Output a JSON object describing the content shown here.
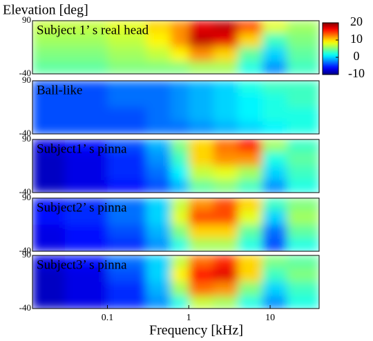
{
  "chart_data": {
    "type": "heatmap",
    "title": "Elevation [deg]",
    "x_label": "Frequency [kHz]",
    "xscale": "log",
    "xlim": [
      0.012,
      40
    ],
    "xticks": [
      0.1,
      1,
      10
    ],
    "ylim": [
      -40,
      90
    ],
    "yticks": [
      90,
      -40
    ],
    "xbins": [
      0.012,
      0.03,
      0.1,
      0.3,
      0.6,
      1,
      2,
      4,
      8,
      16,
      40
    ],
    "ybins": [
      90,
      60,
      25,
      -10,
      -40
    ],
    "colormap": "jet",
    "clim": [
      -10,
      20
    ],
    "cticks": [
      20,
      10,
      0,
      -10
    ],
    "panels": [
      {
        "title": "Subject 1’ s real head",
        "label_color": "#000000",
        "z": [
          [
            7,
            7,
            8,
            10,
            12,
            17,
            18,
            14,
            8,
            6
          ],
          [
            6,
            6,
            7,
            9,
            12,
            18,
            17,
            10,
            3,
            5
          ],
          [
            5,
            5,
            6,
            7,
            9,
            12,
            10,
            4,
            0,
            4
          ],
          [
            4,
            4,
            5,
            5,
            5,
            6,
            6,
            2,
            -2,
            3
          ]
        ]
      },
      {
        "title": "Ball-like",
        "label_color": "#000000",
        "z": [
          [
            -4,
            -4,
            -3,
            -3,
            -2,
            -1,
            0,
            2,
            3,
            3
          ],
          [
            -4,
            -4,
            -3,
            -3,
            -2,
            -1,
            0,
            1,
            2,
            3
          ],
          [
            -4,
            -4,
            -4,
            -3,
            -2,
            -1,
            0,
            1,
            2,
            2
          ],
          [
            -4,
            -4,
            -4,
            -3,
            -3,
            -2,
            -1,
            0,
            1,
            2
          ]
        ]
      },
      {
        "title": "Subject1’ s pinna",
        "label_color": "#ffffff",
        "z": [
          [
            -7,
            -6,
            -4,
            -1,
            5,
            10,
            13,
            16,
            6,
            3
          ],
          [
            -8,
            -7,
            -5,
            -2,
            3,
            10,
            12,
            12,
            2,
            4
          ],
          [
            -8,
            -7,
            -5,
            -3,
            1,
            7,
            8,
            6,
            0,
            3
          ],
          [
            -8,
            -7,
            -6,
            -4,
            -1,
            4,
            5,
            3,
            -2,
            2
          ]
        ]
      },
      {
        "title": "Subject2’ s pinna",
        "label_color": "#ffffff",
        "z": [
          [
            -6,
            -5,
            -3,
            0,
            7,
            12,
            14,
            10,
            3,
            5
          ],
          [
            -6,
            -5,
            -3,
            0,
            8,
            14,
            14,
            8,
            0,
            6
          ],
          [
            -7,
            -6,
            -4,
            -1,
            5,
            10,
            10,
            4,
            -3,
            4
          ],
          [
            -7,
            -6,
            -5,
            -2,
            2,
            6,
            6,
            2,
            -4,
            2
          ]
        ]
      },
      {
        "title": "Subject3’ s pinna",
        "label_color": "#ffffff",
        "z": [
          [
            -7,
            -6,
            -3,
            0,
            7,
            13,
            15,
            10,
            5,
            4
          ],
          [
            -8,
            -7,
            -4,
            0,
            9,
            16,
            17,
            10,
            3,
            5
          ],
          [
            -8,
            -7,
            -5,
            -1,
            6,
            13,
            12,
            5,
            0,
            3
          ],
          [
            -8,
            -7,
            -5,
            -2,
            2,
            7,
            6,
            2,
            -2,
            2
          ]
        ]
      }
    ]
  }
}
